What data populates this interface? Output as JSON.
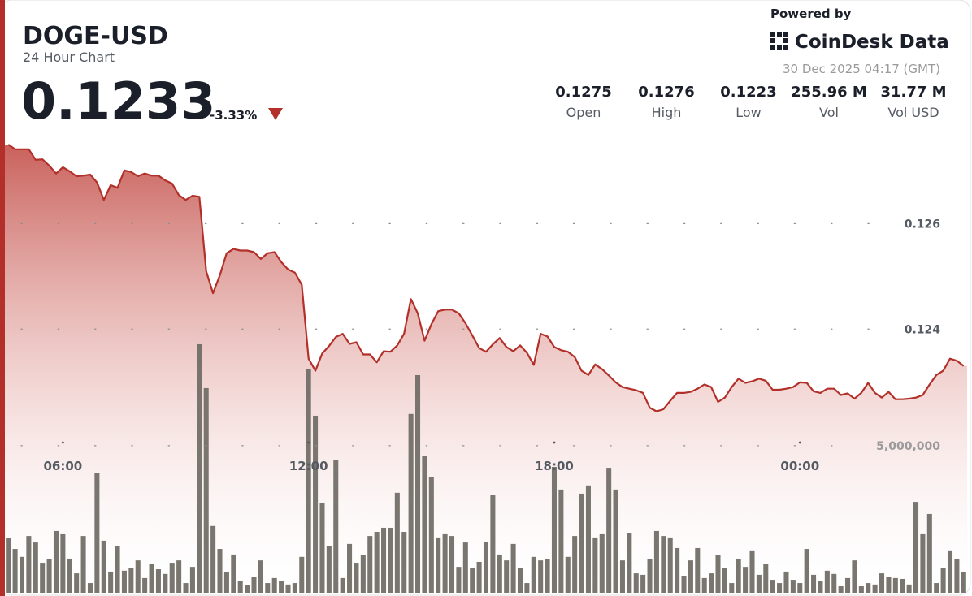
{
  "header": {
    "symbol": "DOGE-USD",
    "subtitle": "24 Hour Chart",
    "price": "0.1233",
    "change": "-3.33%",
    "powered_by": "Powered by",
    "brand": "CoinDesk Data",
    "timestamp": "30 Dec 2025 04:17 (GMT)",
    "stats": [
      {
        "value": "0.1275",
        "label": "Open"
      },
      {
        "value": "0.1276",
        "label": "High"
      },
      {
        "value": "0.1223",
        "label": "Low"
      },
      {
        "value": "255.96 M",
        "label": "Vol"
      },
      {
        "value": "31.77 M",
        "label": "Vol USD"
      }
    ]
  },
  "chart_data": {
    "type": "line",
    "area": true,
    "grid": true,
    "categories": [
      null,
      null,
      null,
      null,
      null,
      null,
      null,
      null,
      "06:00",
      null,
      null,
      null,
      null,
      null,
      null,
      null,
      null,
      null,
      null,
      null,
      null,
      null,
      null,
      null,
      null,
      null,
      null,
      null,
      null,
      null,
      null,
      null,
      null,
      null,
      null,
      null,
      null,
      null,
      null,
      null,
      null,
      null,
      null,
      null,
      "12:00",
      null,
      null,
      null,
      null,
      null,
      null,
      null,
      null,
      null,
      null,
      null,
      null,
      null,
      null,
      null,
      null,
      null,
      null,
      null,
      null,
      null,
      null,
      null,
      null,
      null,
      null,
      null,
      null,
      null,
      null,
      null,
      null,
      null,
      null,
      null,
      "18:00",
      null,
      null,
      null,
      null,
      null,
      null,
      null,
      null,
      null,
      null,
      null,
      null,
      null,
      null,
      null,
      null,
      null,
      null,
      null,
      null,
      null,
      null,
      null,
      null,
      null,
      null,
      null,
      null,
      null,
      null,
      null,
      null,
      null,
      null,
      null,
      "00:00",
      null,
      null,
      null,
      null,
      null,
      null,
      null,
      null,
      null,
      null,
      null,
      null,
      null,
      null,
      null,
      null,
      null,
      null,
      null,
      null,
      null,
      null,
      null,
      null
    ],
    "ylim": [
      0.119,
      0.1277
    ],
    "yticks": [
      0.124,
      0.126
    ],
    "y2lim": [
      0,
      15600000
    ],
    "y2ticks": [
      {
        "value": 5000000,
        "label": "5,000,000"
      }
    ],
    "series": [
      {
        "type": "line",
        "color": "#b3302a",
        "values": [
          0.1275,
          0.12741,
          0.12741,
          0.12741,
          0.12721,
          0.12722,
          0.1271,
          0.12695,
          0.12707,
          0.12699,
          0.1269,
          0.12691,
          0.12693,
          0.12678,
          0.12645,
          0.12673,
          0.12668,
          0.12701,
          0.12698,
          0.1269,
          0.12695,
          0.12691,
          0.12691,
          0.12682,
          0.12676,
          0.12654,
          0.12645,
          0.12653,
          0.12651,
          0.1251,
          0.12468,
          0.12502,
          0.12544,
          0.12552,
          0.12549,
          0.12549,
          0.12546,
          0.12533,
          0.12544,
          0.12546,
          0.12527,
          0.12513,
          0.12507,
          0.12484,
          0.12344,
          0.12321,
          0.12354,
          0.12368,
          0.12385,
          0.12391,
          0.12372,
          0.12375,
          0.12352,
          0.12352,
          0.12337,
          0.12358,
          0.12357,
          0.12369,
          0.12391,
          0.12457,
          0.1243,
          0.12378,
          0.12409,
          0.12434,
          0.12437,
          0.12437,
          0.1243,
          0.12411,
          0.12388,
          0.12364,
          0.12357,
          0.12371,
          0.12383,
          0.12366,
          0.12358,
          0.12369,
          0.12355,
          0.12332,
          0.12391,
          0.12386,
          0.12366,
          0.1236,
          0.12357,
          0.12347,
          0.12321,
          0.12313,
          0.12333,
          0.12324,
          0.12312,
          0.12299,
          0.1229,
          0.12287,
          0.12284,
          0.12279,
          0.12251,
          0.12244,
          0.12248,
          0.12264,
          0.12279,
          0.12279,
          0.12281,
          0.12287,
          0.12295,
          0.1229,
          0.12262,
          0.1227,
          0.1229,
          0.12306,
          0.12298,
          0.12301,
          0.12306,
          0.12302,
          0.12285,
          0.12285,
          0.12287,
          0.1229,
          0.12299,
          0.12298,
          0.12282,
          0.12279,
          0.12287,
          0.12287,
          0.12275,
          0.12278,
          0.12268,
          0.12279,
          0.12298,
          0.12279,
          0.1227,
          0.12281,
          0.12267,
          0.12267,
          0.12268,
          0.1227,
          0.12275,
          0.12295,
          0.12313,
          0.12321,
          0.12344,
          0.1234,
          0.1233
        ]
      },
      {
        "type": "bar",
        "axis": "y2",
        "color": "#6e6a64",
        "values": [
          1850000,
          1490000,
          1220000,
          1930000,
          1710000,
          1020000,
          1160000,
          2100000,
          1990000,
          1160000,
          660000,
          1930000,
          330000,
          4060000,
          1770000,
          720000,
          1600000,
          750000,
          830000,
          1100000,
          500000,
          970000,
          800000,
          640000,
          1020000,
          1100000,
          330000,
          880000,
          8450000,
          6960000,
          2270000,
          1490000,
          690000,
          1300000,
          410000,
          250000,
          550000,
          1100000,
          330000,
          500000,
          410000,
          280000,
          330000,
          1220000,
          7600000,
          6020000,
          3040000,
          1600000,
          4500000,
          500000,
          1660000,
          1020000,
          1270000,
          1930000,
          2070000,
          2210000,
          2210000,
          3400000,
          2070000,
          6080000,
          7400000,
          4640000,
          3920000,
          1880000,
          1990000,
          1930000,
          880000,
          1710000,
          830000,
          1050000,
          1740000,
          3340000,
          1300000,
          1100000,
          1660000,
          830000,
          330000,
          1220000,
          1100000,
          1160000,
          4280000,
          3510000,
          1220000,
          1930000,
          3370000,
          3650000,
          1880000,
          1990000,
          4250000,
          3510000,
          1100000,
          2040000,
          660000,
          610000,
          1160000,
          2100000,
          1930000,
          1880000,
          1520000,
          580000,
          1100000,
          1520000,
          500000,
          660000,
          1270000,
          830000,
          330000,
          1160000,
          880000,
          1440000,
          610000,
          990000,
          440000,
          330000,
          720000,
          440000,
          330000,
          1490000,
          610000,
          390000,
          750000,
          640000,
          220000,
          500000,
          1100000,
          220000,
          330000,
          280000,
          660000,
          550000,
          500000,
          470000,
          280000,
          3090000,
          1990000,
          2680000,
          330000,
          830000,
          1440000,
          1160000,
          690000
        ]
      }
    ]
  }
}
